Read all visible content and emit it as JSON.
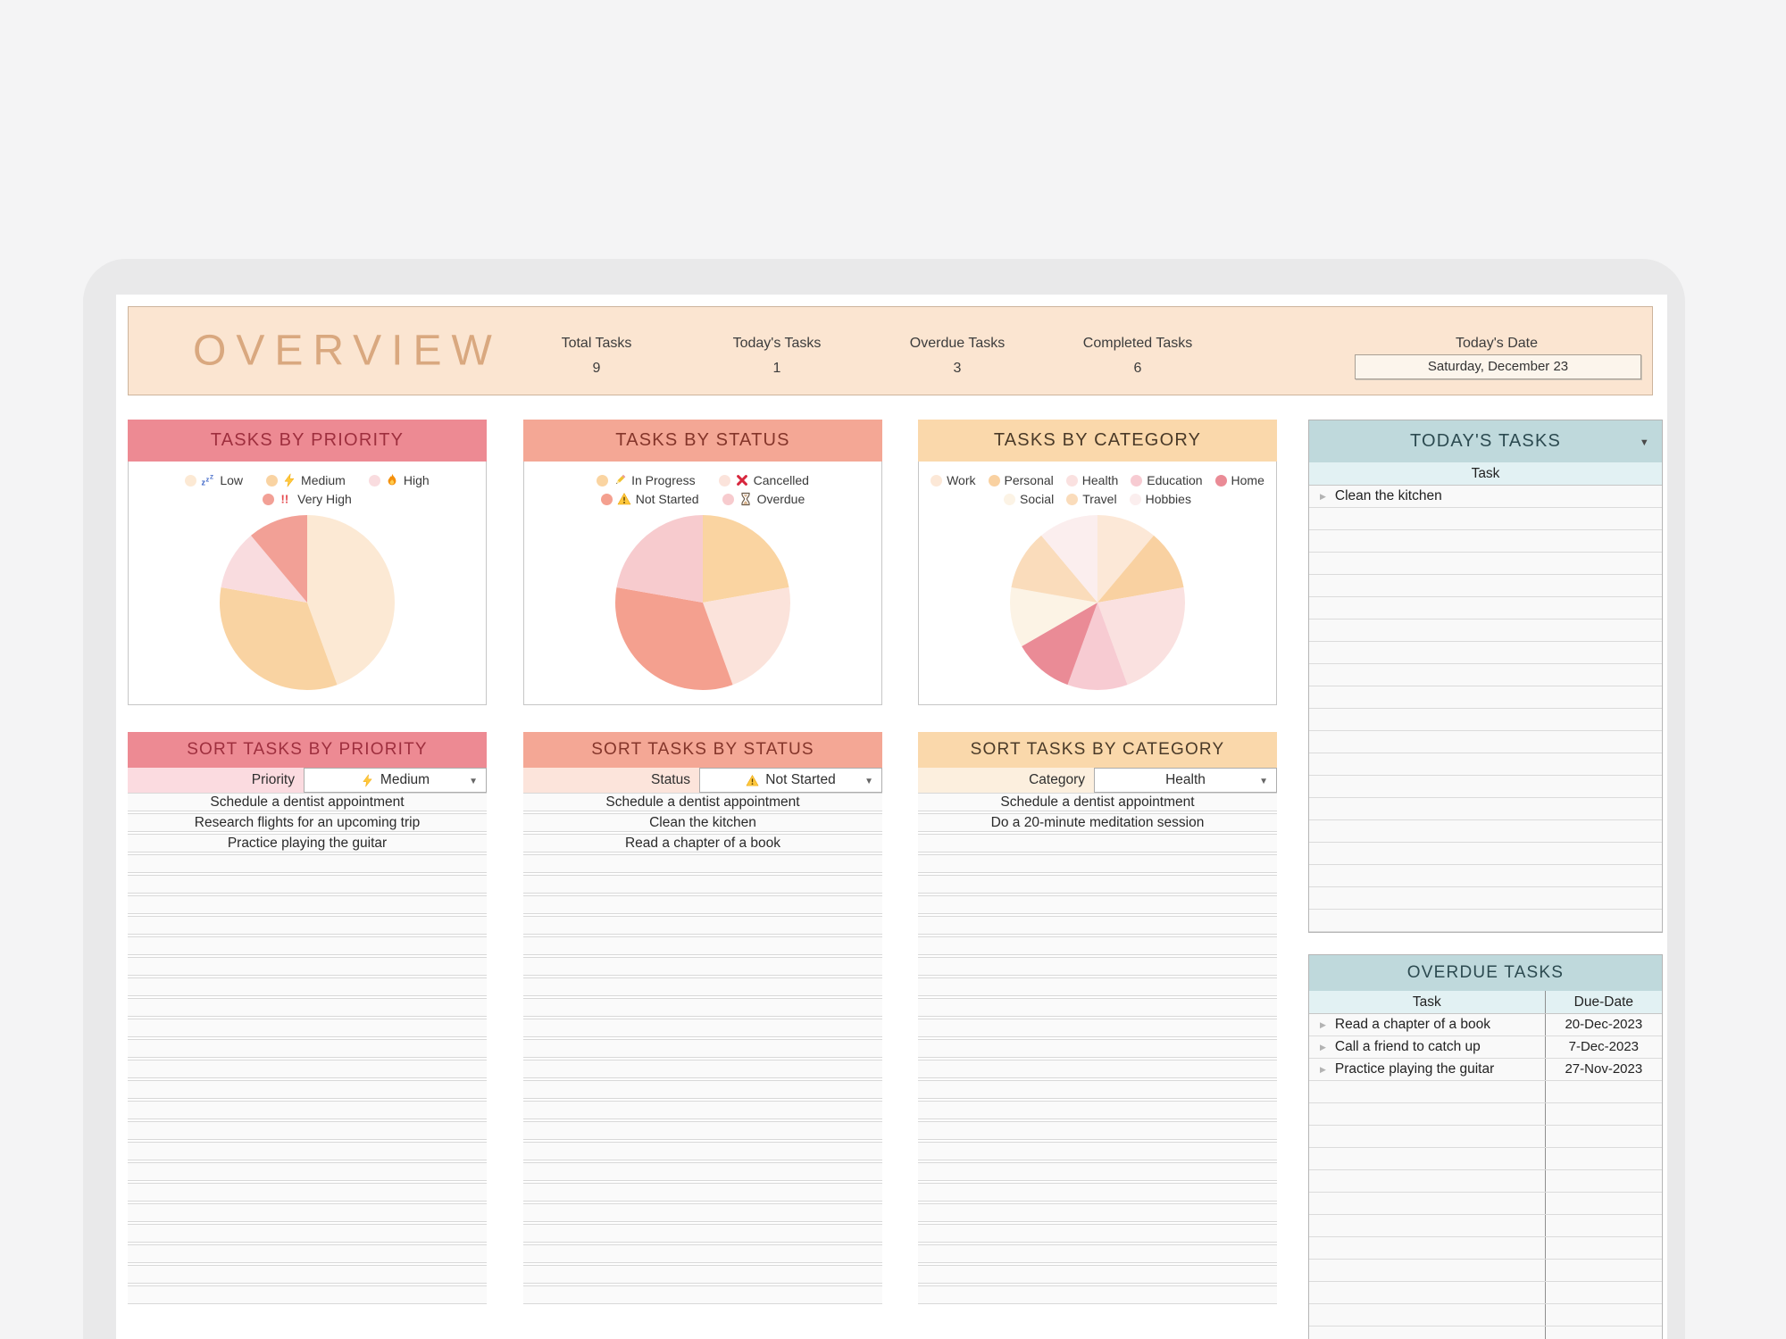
{
  "header": {
    "title": "OVERVIEW",
    "stats": [
      {
        "label": "Total Tasks",
        "value": "9"
      },
      {
        "label": "Today's Tasks",
        "value": "1"
      },
      {
        "label": "Overdue Tasks",
        "value": "3"
      },
      {
        "label": "Completed Tasks",
        "value": "6"
      }
    ],
    "date": {
      "label": "Today's Date",
      "value": "Saturday, December 23"
    }
  },
  "chart_data": [
    {
      "id": "priority",
      "type": "pie",
      "title": "TASKS BY PRIORITY",
      "legend_position": "top",
      "slices": [
        {
          "label": "Low",
          "icon": "sleep-icon",
          "value": 4,
          "color": "#FCE9D4"
        },
        {
          "label": "Medium",
          "icon": "lightning-icon",
          "value": 3,
          "color": "#F9D3A2"
        },
        {
          "label": "High",
          "icon": "fire-icon",
          "value": 1,
          "color": "#F9DCDF"
        },
        {
          "label": "Very High",
          "icon": "double-exclamation-icon",
          "value": 1,
          "color": "#F2A096"
        }
      ]
    },
    {
      "id": "status",
      "type": "pie",
      "title": "TASKS BY STATUS",
      "legend_position": "top",
      "slices": [
        {
          "label": "In Progress",
          "icon": "pencil-icon",
          "value": 2,
          "color": "#FAD4A1"
        },
        {
          "label": "Cancelled",
          "icon": "cross-icon",
          "value": 2,
          "color": "#FBE3DB"
        },
        {
          "label": "Not Started",
          "icon": "warning-icon",
          "value": 3,
          "color": "#F4A08F"
        },
        {
          "label": "Overdue",
          "icon": "hourglass-icon",
          "value": 2,
          "color": "#F7CBCE"
        }
      ]
    },
    {
      "id": "category",
      "type": "pie",
      "title": "TASKS BY CATEGORY",
      "legend_position": "top",
      "slices": [
        {
          "label": "Work",
          "icon": null,
          "value": 1,
          "color": "#FCE8D7"
        },
        {
          "label": "Personal",
          "icon": null,
          "value": 1,
          "color": "#F9D1A1"
        },
        {
          "label": "Health",
          "icon": null,
          "value": 2,
          "color": "#FAE1E0"
        },
        {
          "label": "Education",
          "icon": null,
          "value": 1,
          "color": "#F7CBD2"
        },
        {
          "label": "Home",
          "icon": null,
          "value": 1,
          "color": "#EA8B96"
        },
        {
          "label": "Social",
          "icon": null,
          "value": 1,
          "color": "#FCF3E5"
        },
        {
          "label": "Travel",
          "icon": null,
          "value": 1,
          "color": "#FADCBB"
        },
        {
          "label": "Hobbies",
          "icon": null,
          "value": 1,
          "color": "#FBEEEE"
        }
      ]
    }
  ],
  "sort_panels": {
    "priority": {
      "title": "SORT TASKS BY PRIORITY",
      "filter_label": "Priority",
      "selected": "Medium",
      "selected_icon": "lightning-icon",
      "tasks": [
        "Schedule a dentist appointment",
        "Research flights for an upcoming trip",
        "Practice playing the guitar"
      ]
    },
    "status": {
      "title": "SORT TASKS BY STATUS",
      "filter_label": "Status",
      "selected": "Not Started",
      "selected_icon": "warning-icon",
      "tasks": [
        "Schedule a dentist appointment",
        "Clean the kitchen",
        "Read a chapter of a book"
      ]
    },
    "category": {
      "title": "SORT TASKS BY CATEGORY",
      "filter_label": "Category",
      "selected": "Health",
      "selected_icon": null,
      "tasks": [
        "Schedule a dentist appointment",
        "Do a 20-minute meditation session"
      ]
    }
  },
  "todays_tasks": {
    "title": "TODAY'S TASKS",
    "column": "Task",
    "tasks": [
      "Clean the kitchen"
    ]
  },
  "overdue_tasks": {
    "title": "OVERDUE TASKS",
    "columns": [
      "Task",
      "Due-Date"
    ],
    "rows": [
      {
        "task": "Read a chapter of a book",
        "due": "20-Dec-2023"
      },
      {
        "task": "Call a friend to catch up",
        "due": "7-Dec-2023"
      },
      {
        "task": "Practice playing the guitar",
        "due": "27-Nov-2023"
      }
    ]
  },
  "colors": {
    "accent_peach": "#FBE5D1",
    "accent_pink": "#ED8A93",
    "accent_salmon": "#F4A795",
    "accent_orange": "#FAD8AB",
    "accent_blue": "#BFD9DC",
    "overview_text": "#D9A87F"
  }
}
